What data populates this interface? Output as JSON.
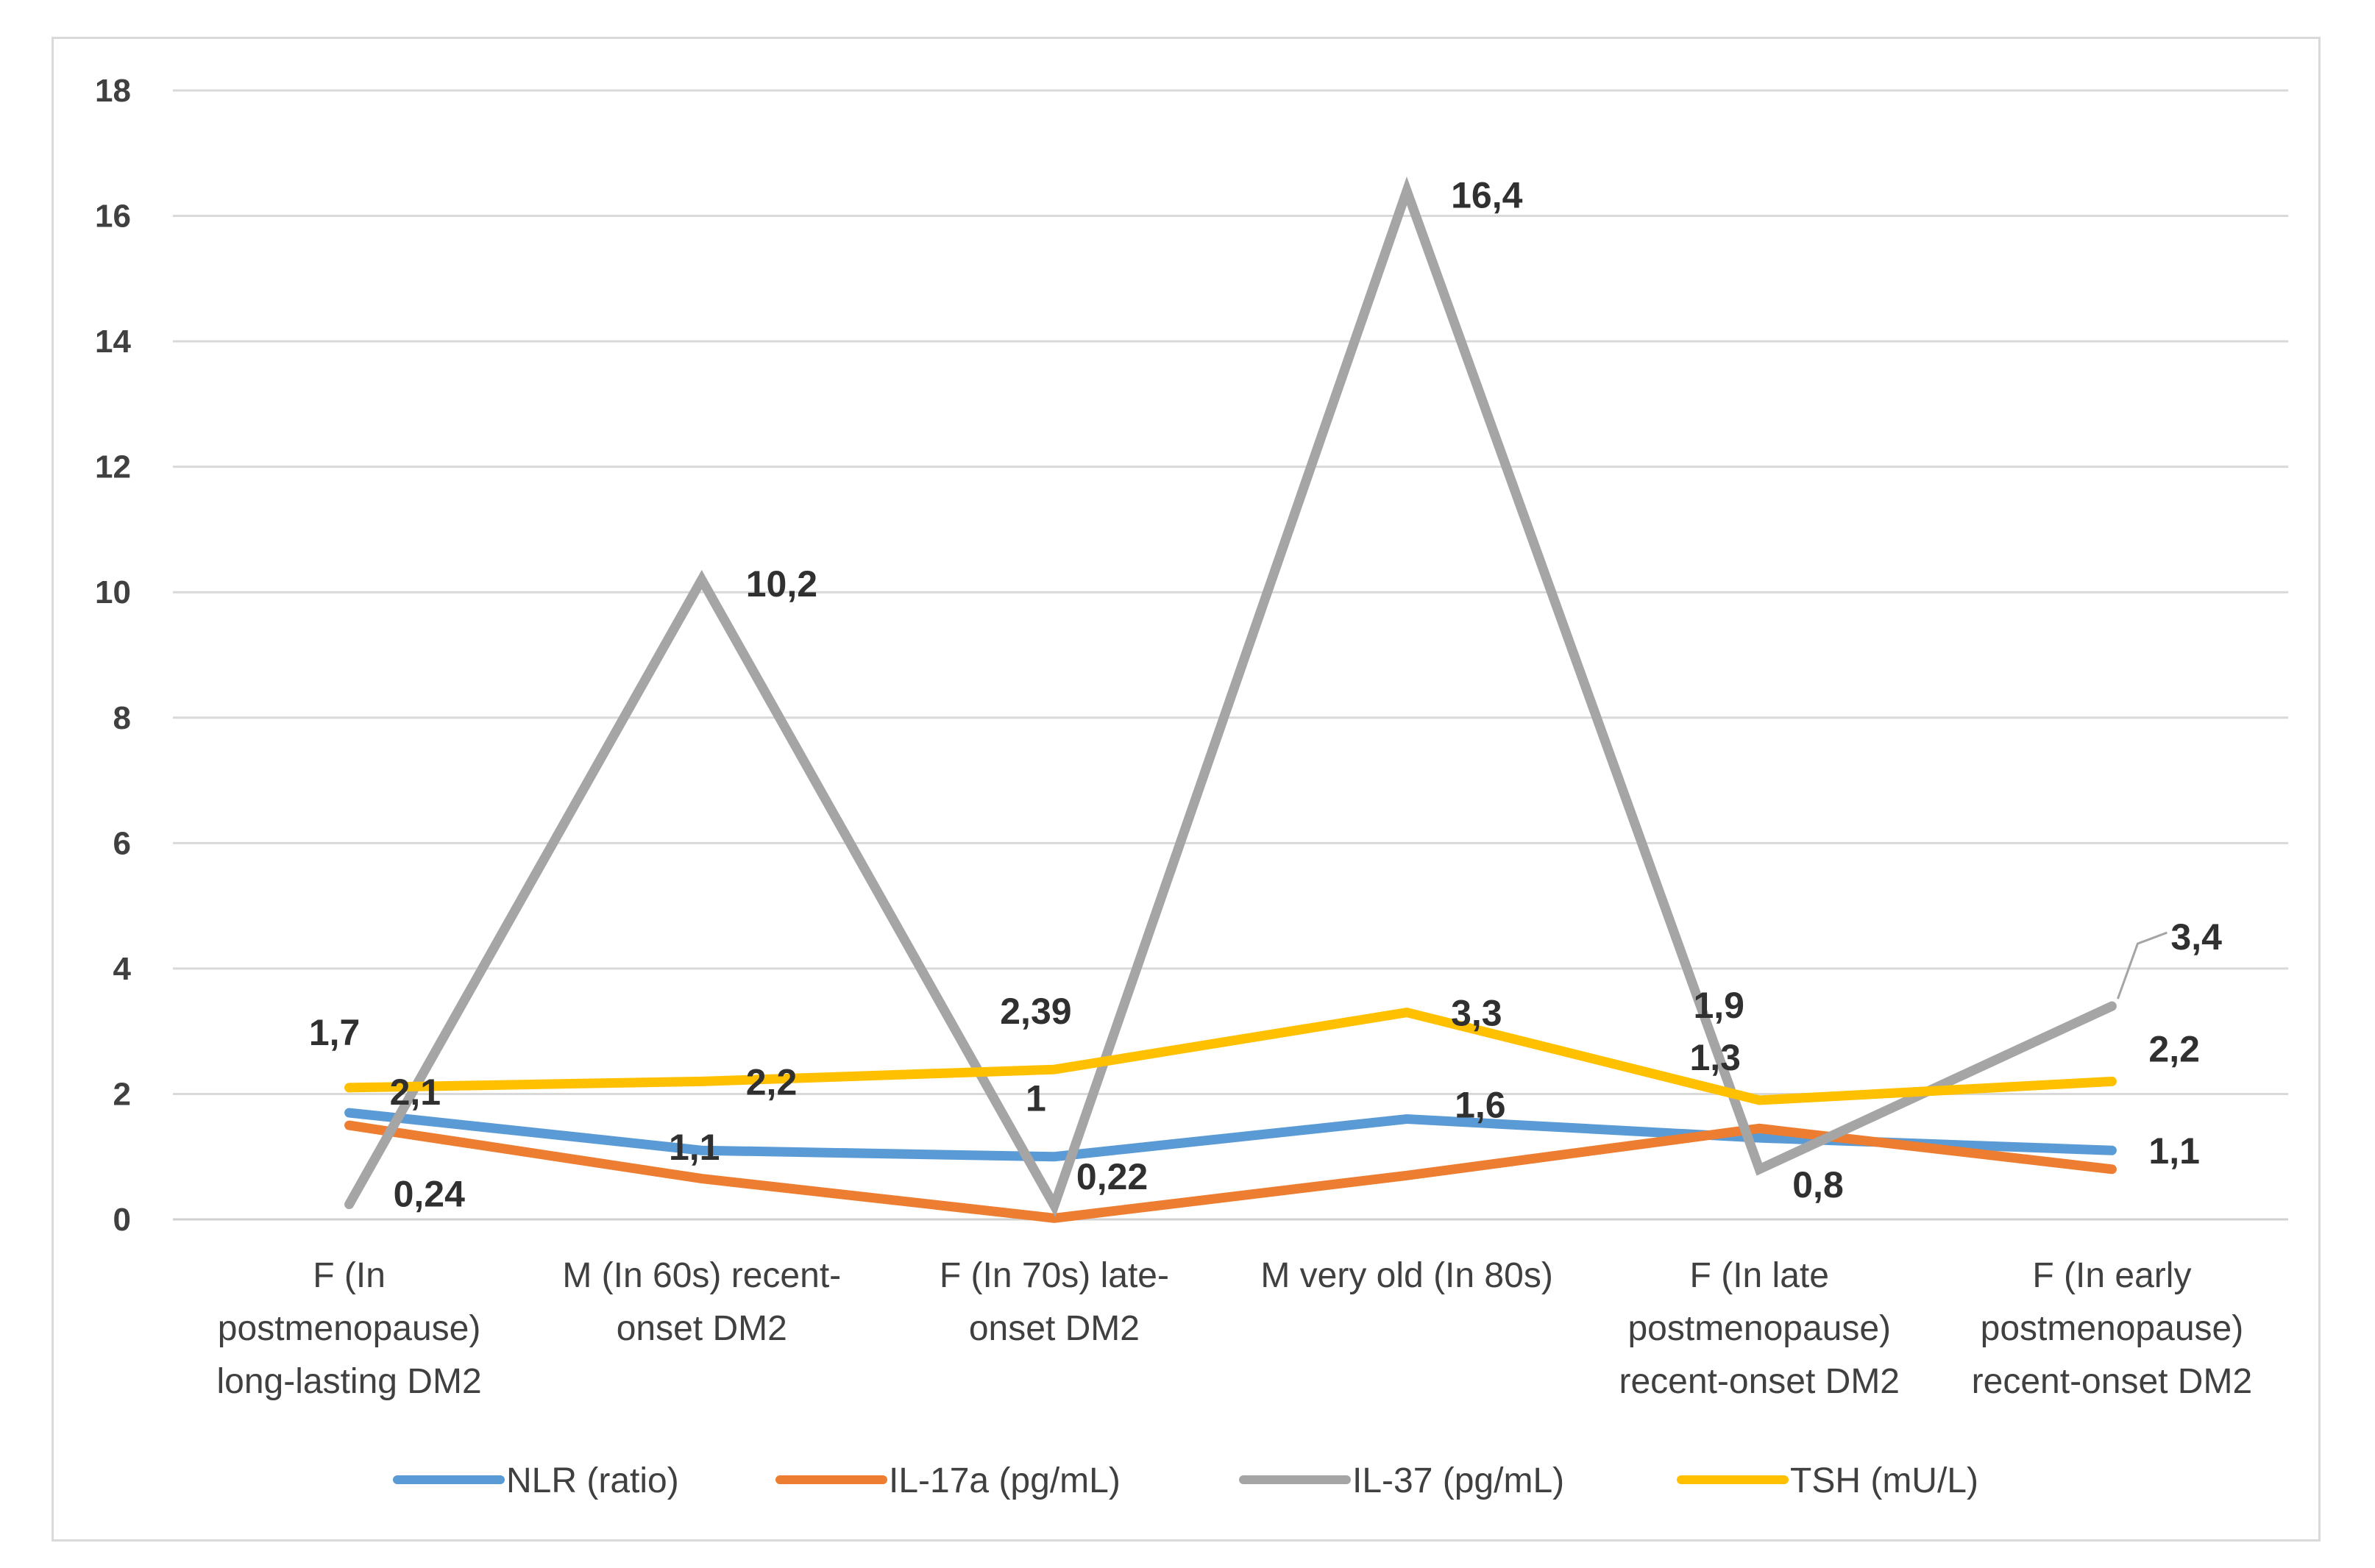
{
  "chart_data": {
    "type": "line",
    "title": "",
    "xlabel": "",
    "ylabel": "",
    "ylim": [
      0,
      18
    ],
    "yticks": [
      "0",
      "2",
      "4",
      "6",
      "8",
      "10",
      "12",
      "14",
      "16",
      "18"
    ],
    "grid": true,
    "legend_position": "bottom",
    "categories": [
      [
        "F (In",
        "postmenopause)",
        "long-lasting DM2"
      ],
      [
        "M (In 60s) recent-",
        "onset DM2"
      ],
      [
        "F (In 70s) late-",
        "onset DM2"
      ],
      [
        "M very old (In 80s)"
      ],
      [
        "F (In late",
        "postmenopause)",
        "recent-onset DM2"
      ],
      [
        "F (In early",
        "postmenopause)",
        "recent-onset DM2"
      ]
    ],
    "series": [
      {
        "name": "NLR  (ratio)",
        "color": "#5b9bd5",
        "values": [
          1.7,
          1.1,
          1.0,
          1.6,
          1.3,
          1.1
        ],
        "labels": [
          "1,7",
          "1,1",
          "1",
          "1,6",
          "1,3",
          "1,1"
        ]
      },
      {
        "name": "IL-17a  (pg/mL)",
        "color": "#ed7d31",
        "values": [
          1.5,
          0.65,
          0.02,
          0.7,
          1.45,
          0.8
        ],
        "labels": [
          "",
          "",
          "",
          "",
          "",
          ""
        ]
      },
      {
        "name": "IL-37  (pg/mL)",
        "color": "#a5a5a5",
        "values": [
          0.24,
          10.2,
          0.22,
          16.4,
          0.8,
          3.4
        ],
        "labels": [
          "0,24",
          "10,2",
          "0,22",
          "16,4",
          "0,8",
          "3,4"
        ]
      },
      {
        "name": "TSH  (mU/L)",
        "color": "#ffc000",
        "values": [
          2.1,
          2.2,
          2.39,
          3.3,
          1.9,
          2.2
        ],
        "labels": [
          "2,1",
          "2,2",
          "2,39",
          "3,3",
          "1,9",
          "2,2"
        ]
      }
    ]
  }
}
